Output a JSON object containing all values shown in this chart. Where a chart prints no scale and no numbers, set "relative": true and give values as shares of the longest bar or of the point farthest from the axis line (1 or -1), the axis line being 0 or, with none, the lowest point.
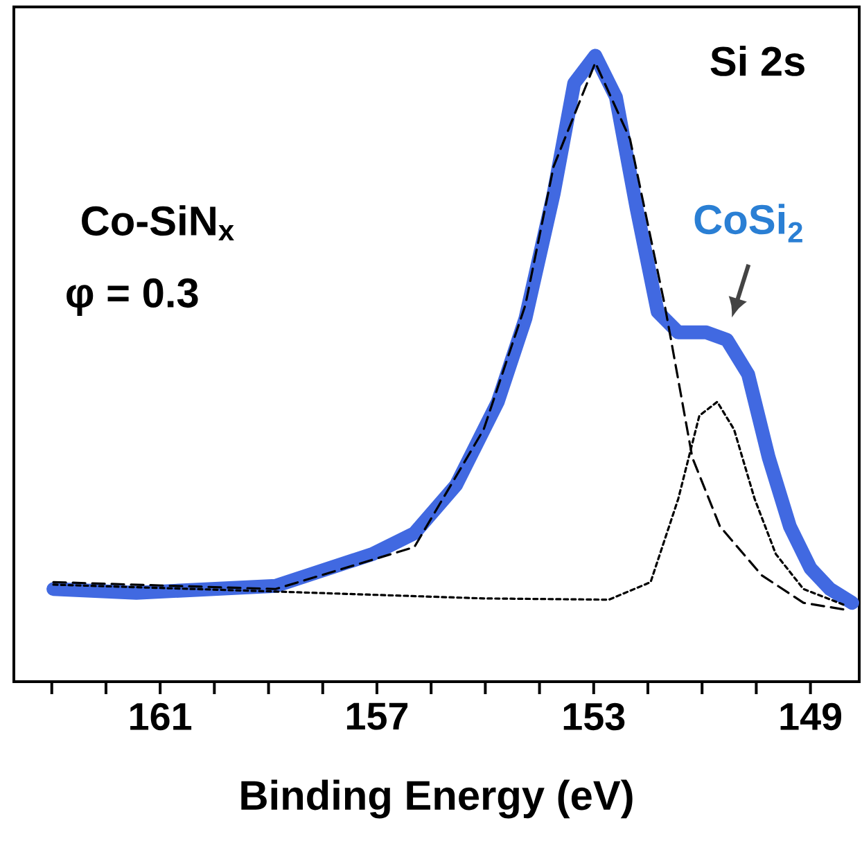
{
  "chart_data": {
    "type": "line",
    "relative": true,
    "tick_labels": "x",
    "marker": "none",
    "xlabel": "Binding Energy (eV)",
    "xlim": [
      163.7,
      148.1
    ],
    "xticks": [
      {
        "value": 163,
        "label": null
      },
      {
        "value": 162,
        "label": null
      },
      161,
      {
        "value": 160,
        "label": null
      },
      {
        "value": 159,
        "label": null
      },
      {
        "value": 158,
        "label": null
      },
      157,
      {
        "value": 156,
        "label": null
      },
      {
        "value": 155,
        "label": null
      },
      {
        "value": 154,
        "label": null
      },
      153,
      {
        "value": 152,
        "label": null
      },
      {
        "value": 151,
        "label": null
      },
      {
        "value": 150,
        "label": null
      },
      149
    ],
    "series": [
      {
        "color": "#4169e1",
        "line_style": "solid",
        "x": [
          162.97,
          161.44,
          158.87,
          157.08,
          156.31,
          155.54,
          154.77,
          154.26,
          153.74,
          153.36,
          152.97,
          152.59,
          152.21,
          151.82,
          151.44,
          150.92,
          150.54,
          150.15,
          149.77,
          149.38,
          149.0,
          148.64,
          148.23
        ],
        "values": [
          0.148,
          0.142,
          0.153,
          0.204,
          0.237,
          0.314,
          0.447,
          0.58,
          0.779,
          0.956,
          1.0,
          0.934,
          0.757,
          0.591,
          0.558,
          0.558,
          0.546,
          0.491,
          0.358,
          0.248,
          0.181,
          0.148,
          0.126
        ]
      },
      {
        "color": "#000000",
        "line_style": "dashed",
        "x": [
          162.97,
          158.87,
          156.31,
          155.03,
          154.26,
          153.74,
          152.97,
          152.33,
          151.69,
          151.18,
          150.67,
          149.9,
          149.13,
          148.36
        ],
        "values": [
          0.159,
          0.148,
          0.215,
          0.403,
          0.602,
          0.823,
          0.989,
          0.867,
          0.602,
          0.358,
          0.248,
          0.17,
          0.126,
          0.115
        ]
      },
      {
        "color": "#000000",
        "line_style": "dotted",
        "x": [
          162.97,
          158.87,
          155.03,
          152.72,
          151.95,
          151.44,
          151.05,
          150.72,
          150.41,
          150.03,
          149.64,
          149.13,
          148.36
        ],
        "values": [
          0.155,
          0.144,
          0.133,
          0.131,
          0.159,
          0.292,
          0.425,
          0.447,
          0.403,
          0.292,
          0.204,
          0.148,
          0.122
        ]
      }
    ],
    "annotations": [
      "Co-SiN$_{x}$",
      "φ = 0.3",
      "Si 2s",
      {
        "text": "CoSi$_{2}$",
        "x": 150.5,
        "y": 0.56
      }
    ]
  }
}
